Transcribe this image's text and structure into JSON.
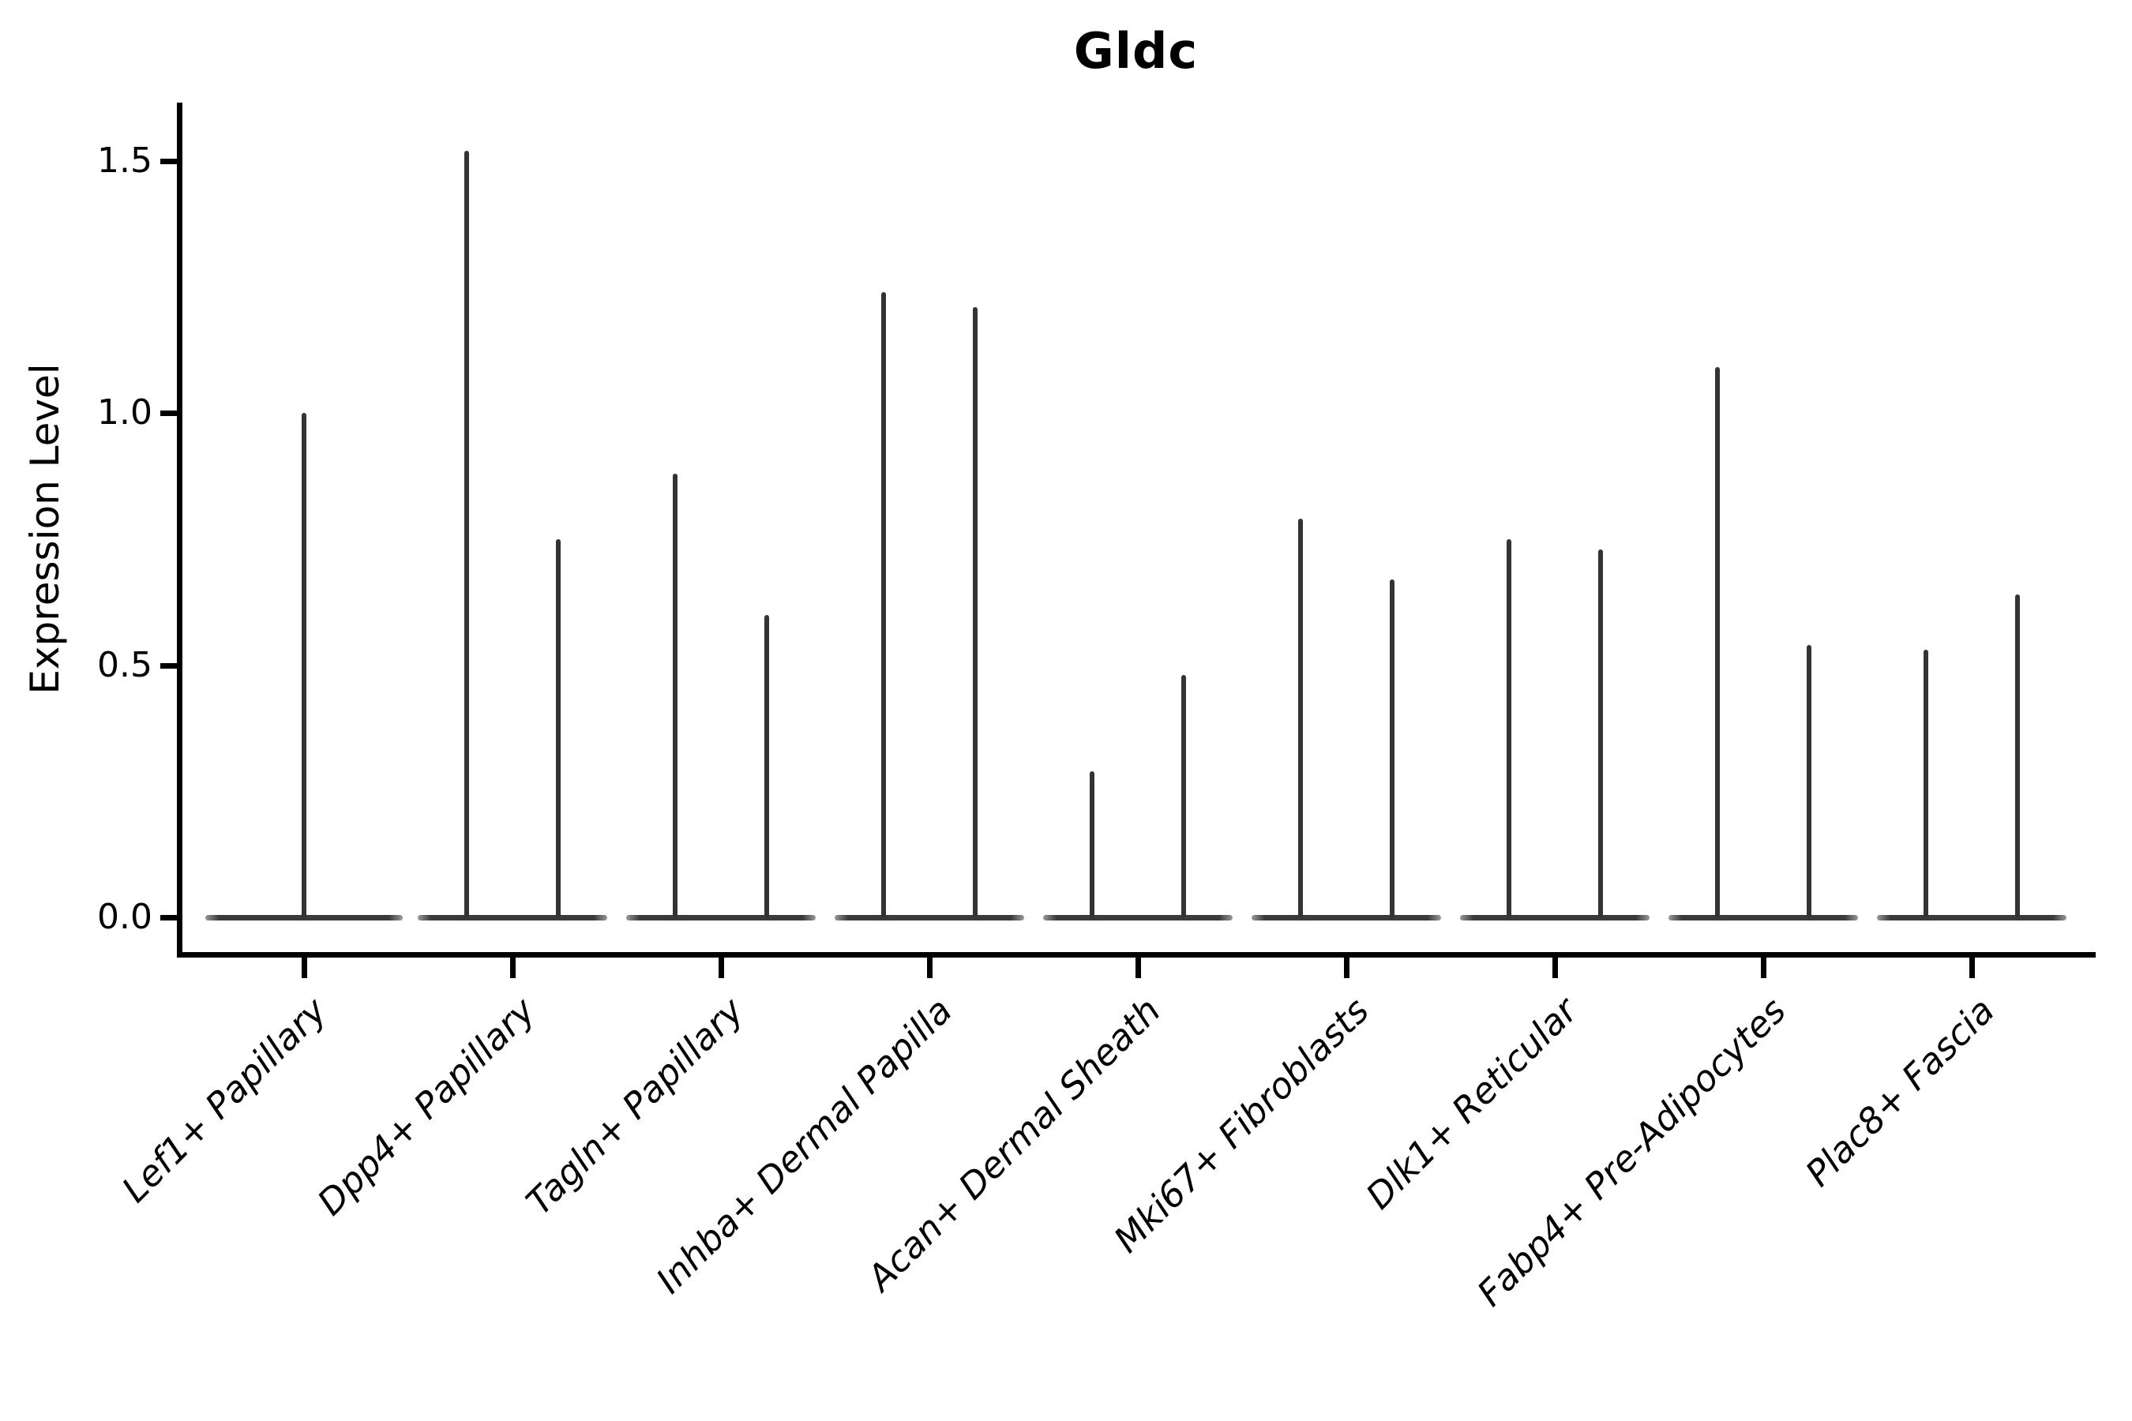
{
  "title": "Gldc",
  "axes": {
    "ylabel": "Expression Level",
    "ytick_labels": [
      "0.0",
      "0.5",
      "1.0",
      "1.5"
    ],
    "ytick_values": [
      0.0,
      0.5,
      1.0,
      1.5
    ],
    "ylim": [
      -0.07,
      1.64
    ],
    "grid": false,
    "spines": [
      "left",
      "bottom"
    ]
  },
  "colors": {
    "violin": "#333333",
    "axis": "#000000",
    "background": "#ffffff"
  },
  "chart_data": {
    "type": "violin",
    "title": "Gldc",
    "xlabel": "",
    "ylabel": "Expression Level",
    "ylim": [
      -0.07,
      1.64
    ],
    "yticks": [
      0.0,
      0.5,
      1.0,
      1.5
    ],
    "legend": "none",
    "grid": false,
    "categories": [
      "Lef1+ Papillary",
      "Dpp4+ Papillary",
      "Tagln+ Papillary",
      "Inhba+ Dermal Papilla",
      "Acan+ Dermal Sheath",
      "Mki67+ Fibroblasts",
      "Dlk1+ Reticular",
      "Fabp4+ Pre-Adipocytes",
      "Plac8+ Fascia"
    ],
    "violins_per_category": [
      1,
      2,
      2,
      2,
      2,
      2,
      2,
      2,
      2
    ],
    "max_expression": [
      [
        1.0
      ],
      [
        1.52,
        0.75
      ],
      [
        0.88,
        0.6
      ],
      [
        1.24,
        1.21
      ],
      [
        0.29,
        0.48
      ],
      [
        0.79,
        0.67
      ],
      [
        0.75,
        0.73
      ],
      [
        1.09,
        0.54
      ],
      [
        0.53,
        0.64
      ]
    ],
    "density_note": "Each violin is a needle shape: expression mass concentrated at 0 (wide flat base) with a thin spike reaching the category maximum expression value."
  }
}
